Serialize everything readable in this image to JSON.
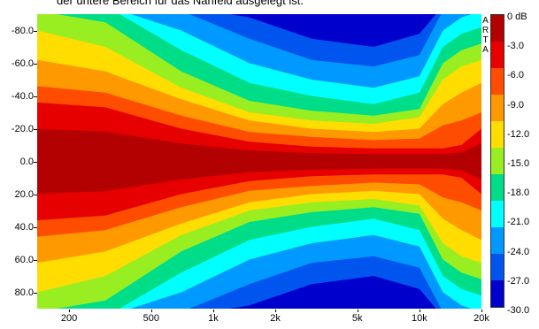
{
  "caption": "der untere Bereich für das Nahfeld ausgelegt ist.",
  "chart_data": {
    "type": "heatmap",
    "xscale": "log",
    "xlim": [
      140,
      20000
    ],
    "ylim": [
      -90,
      90
    ],
    "x_ticks": [
      "200",
      "500",
      "1k",
      "2k",
      "5k",
      "10k",
      "20k"
    ],
    "x_tick_values": [
      200,
      500,
      1000,
      2000,
      5000,
      10000,
      20000
    ],
    "y_ticks": [
      "-80.0",
      "-60.0",
      "-40.0",
      "-20.0",
      "0.0",
      "20.0",
      "40.0",
      "60.0",
      "80.0"
    ],
    "y_tick_values": [
      -80,
      -60,
      -40,
      -20,
      0,
      20,
      40,
      60,
      80
    ],
    "brand": "ARTA",
    "colorbar": {
      "labels": [
        "0 dB",
        "-3.0",
        "-6.0",
        "-9.0",
        "-12.0",
        "-15.0",
        "-18.0",
        "-21.0",
        "-24.0",
        "-27.0",
        "-30.0"
      ],
      "colors": [
        "#b30000",
        "#e60000",
        "#ff4d00",
        "#ff9900",
        "#ffdd00",
        "#99ee22",
        "#00dd88",
        "#00ffff",
        "#0099ff",
        "#0055ee",
        "#0000cc"
      ]
    },
    "beamwidth_contours_deg": [
      {
        "level": "-3 dB",
        "freq_hz": [
          140,
          300,
          700,
          1500,
          3000,
          6000,
          10000,
          13000,
          16000,
          20000
        ],
        "angle": [
          36,
          33,
          20,
          12,
          9,
          8,
          8,
          8,
          10,
          20
        ]
      },
      {
        "level": "-6 dB",
        "freq_hz": [
          140,
          300,
          700,
          1500,
          3000,
          6000,
          10000,
          13000,
          16000,
          20000
        ],
        "angle": [
          46,
          42,
          28,
          18,
          15,
          13,
          14,
          22,
          25,
          30
        ]
      },
      {
        "level": "-9 dB",
        "freq_hz": [
          140,
          300,
          700,
          1500,
          3000,
          6000,
          10000,
          13000,
          16000,
          20000
        ],
        "angle": [
          62,
          55,
          38,
          25,
          20,
          18,
          20,
          35,
          42,
          48
        ]
      },
      {
        "level": "-12 dB",
        "freq_hz": [
          140,
          300,
          700,
          1500,
          3000,
          6000,
          10000,
          13000,
          16000,
          20000
        ],
        "angle": [
          80,
          70,
          45,
          30,
          25,
          23,
          27,
          50,
          58,
          62
        ]
      },
      {
        "level": "-15 dB",
        "freq_hz": [
          140,
          300,
          700,
          1500,
          3000,
          6000,
          10000,
          13000,
          16000,
          20000
        ],
        "angle": [
          92,
          85,
          55,
          37,
          31,
          28,
          32,
          60,
          68,
          72
        ]
      },
      {
        "level": "-18 dB",
        "freq_hz": [
          140,
          300,
          700,
          1500,
          3000,
          6000,
          10000,
          13000,
          16000,
          20000
        ],
        "angle": [
          95,
          95,
          68,
          48,
          40,
          35,
          42,
          70,
          78,
          82
        ]
      },
      {
        "level": "-21 dB",
        "freq_hz": [
          140,
          300,
          700,
          1500,
          3000,
          6000,
          10000,
          13000,
          16000,
          20000
        ],
        "angle": [
          95,
          95,
          80,
          60,
          50,
          45,
          52,
          80,
          88,
          92
        ]
      },
      {
        "level": "-24 dB",
        "freq_hz": [
          140,
          300,
          700,
          1500,
          3000,
          6000,
          10000,
          13000,
          16000,
          20000
        ],
        "angle": [
          95,
          95,
          92,
          75,
          62,
          58,
          65,
          92,
          95,
          95
        ]
      },
      {
        "level": "-27 dB",
        "freq_hz": [
          140,
          300,
          700,
          1500,
          3000,
          6000,
          10000,
          13000,
          16000,
          20000
        ],
        "angle": [
          95,
          95,
          95,
          88,
          75,
          70,
          78,
          95,
          95,
          95
        ]
      }
    ]
  }
}
